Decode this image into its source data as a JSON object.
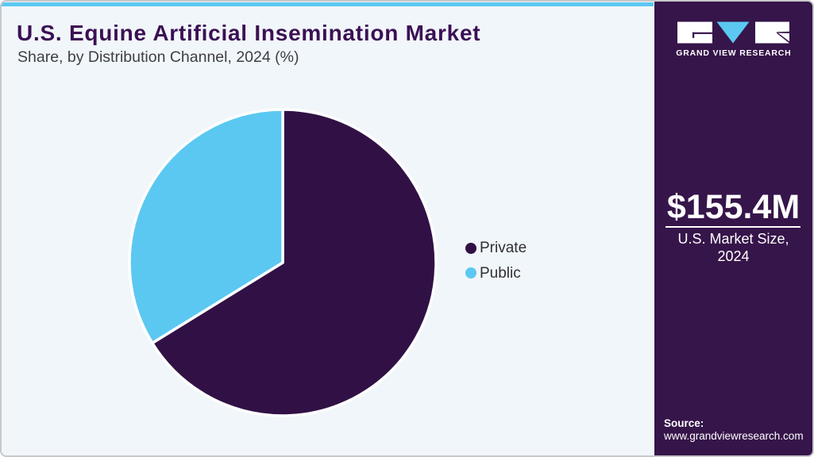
{
  "chart_data": {
    "type": "pie",
    "title": "U.S. Equine Artificial Insemination Market",
    "subtitle": "Share, by Distribution Channel, 2024 (%)",
    "slices": [
      {
        "label": "Private",
        "value": 66.2,
        "color": "#311145"
      },
      {
        "label": "Public",
        "value": 33.8,
        "color": "#5bc8f2"
      }
    ],
    "start_angle_deg": 0,
    "direction": "clockwise",
    "legend_position": "right",
    "separator_color": "#ffffff"
  },
  "sidebar": {
    "logo": {
      "brand": "GRAND VIEW RESEARCH"
    },
    "market_size": {
      "value": "$155.4M",
      "caption": "U.S. Market Size,\n2024"
    },
    "source": {
      "label": "Source:",
      "url_text": "www.grandviewresearch.com"
    }
  },
  "colors": {
    "accent_cyan": "#5bc8f2",
    "sidebar_bg": "#36154a",
    "panel_bg": "#f1f6fa",
    "title_color": "#3b1054",
    "pie_private": "#311145",
    "pie_public": "#5bc8f2"
  }
}
